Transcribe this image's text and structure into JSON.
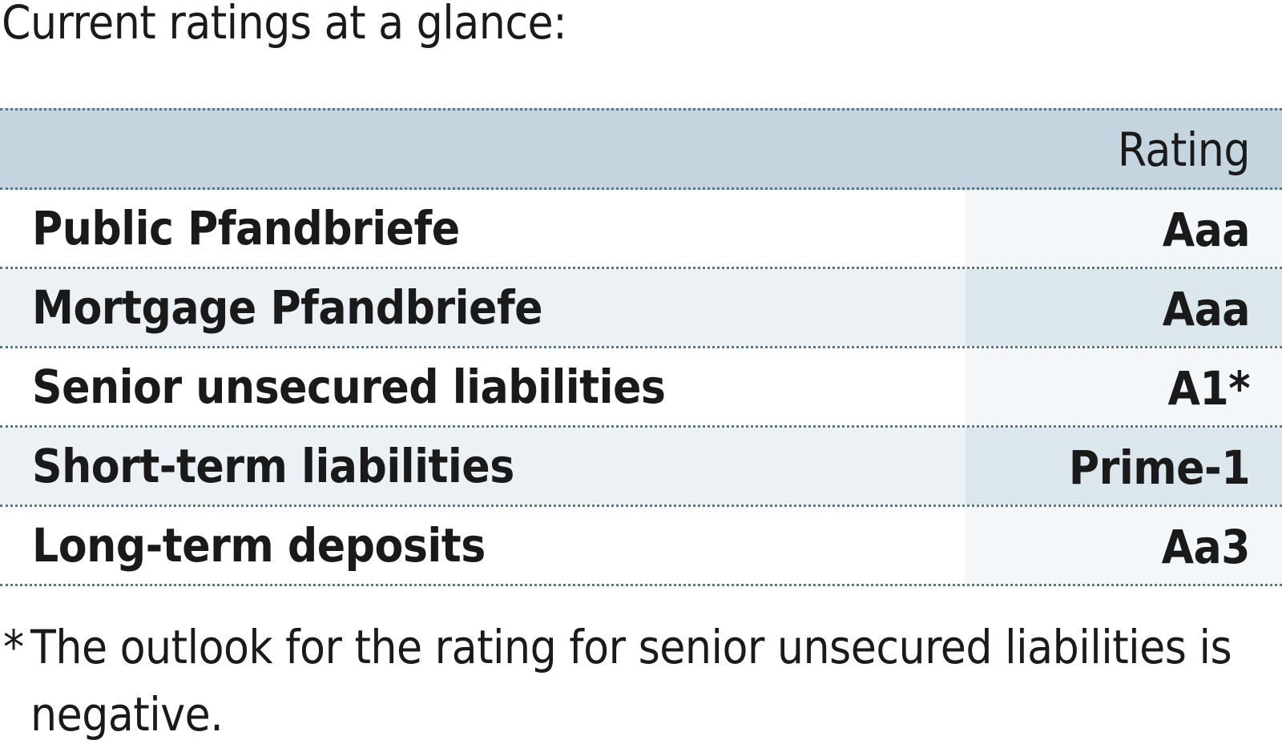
{
  "heading": "Current ratings at a glance:",
  "table": {
    "header": {
      "label": "",
      "value": "Rating"
    },
    "rows": [
      {
        "label": "Public Pfandbriefe",
        "value": "Aaa"
      },
      {
        "label": "Mortgage Pfandbriefe",
        "value": "Aaa"
      },
      {
        "label": "Senior unsecured liabilities",
        "value": "A1*"
      },
      {
        "label": "Short-term liabilities",
        "value": "Prime-1"
      },
      {
        "label": "Long-term deposits",
        "value": "Aa3"
      }
    ]
  },
  "footnote": {
    "marker": "*",
    "text": "The outlook for the rating for senior unsecured liabilities is negative."
  },
  "colors": {
    "header_background": "#c5d5e0",
    "stripe_light": "#ecf1f5",
    "value_column_shade": "#dbe6ed",
    "dotted_rule": "#4d7a8e"
  }
}
